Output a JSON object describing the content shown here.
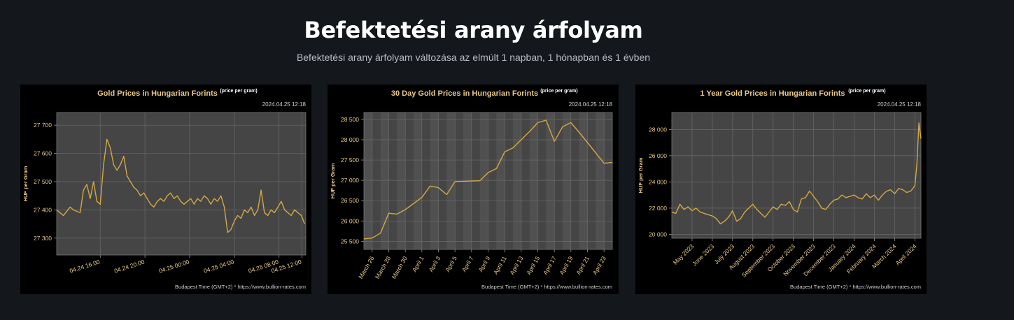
{
  "header": {
    "title": "Befektetési arany árfolyam",
    "subtitle": "Befektetési arany árfolyam változása az elmúlt 1 napban, 1 hónapban és 1 évben"
  },
  "colors": {
    "background": "#14171c",
    "plot_area": "#454545",
    "band": "#505050",
    "line": "#d4a843",
    "text_gold": "#e8c98a"
  },
  "chart_data": [
    {
      "type": "line",
      "title": "Gold Prices in Hungarian Forints",
      "title_sup": "(price per gram)",
      "timestamp": "2024.04.25 12:18",
      "footer": "Budapest Time (GMT+2) * https://www.bullion-rates.com",
      "ylabel": "HUF per Gram",
      "ylim": [
        27240,
        27745
      ],
      "yticks": [
        27300,
        27400,
        27500,
        27600,
        27700
      ],
      "ytick_labels": [
        "27 300",
        "27 400",
        "27 500",
        "27 600",
        "27 700"
      ],
      "xlim": [
        0,
        22.3
      ],
      "xticks": [
        3.9,
        7.9,
        11.9,
        15.9,
        19.9
      ],
      "xtick_labels": [
        "04.24 16:00",
        "04.24 20:00",
        "04.25 00:00",
        "04.25 04:00",
        "04.25 08:00",
        "04.25 12:00"
      ],
      "xtick_positions": [
        3,
        7,
        11,
        15,
        19,
        23
      ],
      "grid": true,
      "series": [
        {
          "x": [
            0,
            0.3,
            0.6,
            0.9,
            1.2,
            1.5,
            1.8,
            2.1,
            2.4,
            2.7,
            3.0,
            3.3,
            3.6,
            3.9,
            4.2,
            4.5,
            4.8,
            5.1,
            5.4,
            5.7,
            6.0,
            6.3,
            6.6,
            6.9,
            7.2,
            7.5,
            7.8,
            8.1,
            8.4,
            8.7,
            9.0,
            9.3,
            9.6,
            9.9,
            10.2,
            10.5,
            10.8,
            11.1,
            11.4,
            11.7,
            12.0,
            12.3,
            12.6,
            12.9,
            13.2,
            13.5,
            13.8,
            14.1,
            14.4,
            14.7,
            15.0,
            15.3,
            15.6,
            15.9,
            16.2,
            16.5,
            16.8,
            17.1,
            17.4,
            17.7,
            18.0,
            18.3,
            18.6,
            18.9,
            19.2,
            19.5,
            19.8,
            20.1,
            20.4,
            20.7,
            21.0,
            21.3,
            21.6,
            21.9,
            22.2
          ],
          "values": [
            27400,
            27390,
            27380,
            27395,
            27410,
            27400,
            27395,
            27390,
            27470,
            27490,
            27440,
            27500,
            27430,
            27420,
            27560,
            27650,
            27620,
            27560,
            27540,
            27560,
            27590,
            27520,
            27500,
            27480,
            27470,
            27450,
            27460,
            27440,
            27420,
            27410,
            27430,
            27440,
            27430,
            27450,
            27460,
            27440,
            27450,
            27430,
            27420,
            27430,
            27440,
            27420,
            27440,
            27430,
            27450,
            27440,
            27420,
            27440,
            27430,
            27450,
            27410,
            27320,
            27330,
            27360,
            27380,
            27370,
            27400,
            27390,
            27410,
            27380,
            27400,
            27470,
            27390,
            27380,
            27400,
            27390,
            27410,
            27430,
            27400,
            27390,
            27380,
            27400,
            27390,
            27380,
            27350
          ]
        }
      ]
    },
    {
      "type": "line",
      "title": "30 Day Gold Prices in Hungarian Forints",
      "title_sup": "(price per gram)",
      "timestamp": "2024.04.25 12:18",
      "footer": "Budapest Time (GMT+2) * https://www.bullion-rates.com",
      "ylabel": "HUF per Gram",
      "ylim": [
        25300,
        28670
      ],
      "yticks": [
        25500,
        26000,
        26500,
        27000,
        27500,
        28000,
        28500
      ],
      "ytick_labels": [
        "25 500",
        "26 000",
        "26 500",
        "27 000",
        "27 500",
        "28 000",
        "28 500"
      ],
      "xlim": [
        0,
        30
      ],
      "xtick_labels": [
        "March 26",
        "March 28",
        "March 30",
        "April 1",
        "April 3",
        "April 5",
        "April 7",
        "April 9",
        "April 11",
        "April 13",
        "April 15",
        "April 17",
        "April 19",
        "April 21",
        "April 23"
      ],
      "xtick_positions": [
        1,
        3,
        5,
        7,
        9,
        11,
        13,
        15,
        17,
        19,
        21,
        23,
        25,
        27,
        29
      ],
      "grid": true,
      "series": [
        {
          "x": [
            0,
            1,
            2,
            3,
            4,
            5,
            7,
            8,
            9,
            10,
            11,
            14,
            15,
            16,
            17,
            18,
            19,
            20,
            21,
            22,
            23,
            24,
            25,
            26,
            27,
            29,
            30
          ],
          "values": [
            25560,
            25580,
            25700,
            26190,
            26170,
            26280,
            26580,
            26860,
            26820,
            26650,
            26970,
            26990,
            27190,
            27290,
            27700,
            27800,
            28000,
            28200,
            28420,
            28480,
            27960,
            28320,
            28420,
            28180,
            27930,
            27420,
            27440
          ]
        }
      ]
    },
    {
      "type": "line",
      "title": "1 Year Gold Prices in Hungarian Forints",
      "title_sup": "(price per gram)",
      "timestamp": "2024.04.25 12:18",
      "footer": "Budapest Time (GMT+2) * https://www.bullion-rates.com",
      "ylabel": "HUF per Gram",
      "ylim": [
        19700,
        29300
      ],
      "yticks": [
        20000,
        22000,
        24000,
        26000,
        28000
      ],
      "ytick_labels": [
        "20 000",
        "22 000",
        "24 000",
        "26 000",
        "28 000"
      ],
      "xlim": [
        0,
        12.3
      ],
      "xtick_labels": [
        "May 2023",
        "June 2023",
        "July 2023",
        "August 2023",
        "September 2023",
        "October 2023",
        "November 2023",
        "December 2023",
        "January 2024",
        "February 2024",
        "March 2024",
        "April 2024"
      ],
      "xtick_positions": [
        1,
        2,
        3,
        4,
        5,
        6,
        7,
        8,
        9,
        10,
        11,
        12
      ],
      "grid": true,
      "series": [
        {
          "x": [
            0,
            0.2,
            0.4,
            0.6,
            0.8,
            1.0,
            1.2,
            1.4,
            1.6,
            1.8,
            2.0,
            2.2,
            2.4,
            2.6,
            2.8,
            3.0,
            3.2,
            3.4,
            3.6,
            3.8,
            4.0,
            4.2,
            4.4,
            4.6,
            4.8,
            5.0,
            5.2,
            5.4,
            5.6,
            5.8,
            6.0,
            6.2,
            6.4,
            6.6,
            6.8,
            7.0,
            7.2,
            7.4,
            7.6,
            7.8,
            8.0,
            8.2,
            8.4,
            8.6,
            8.8,
            9.0,
            9.2,
            9.4,
            9.6,
            9.8,
            10.0,
            10.2,
            10.4,
            10.6,
            10.8,
            11.0,
            11.2,
            11.4,
            11.6,
            11.8,
            12.0,
            12.1,
            12.2,
            12.3
          ],
          "values": [
            21700,
            21600,
            22300,
            21900,
            22100,
            21800,
            22000,
            21700,
            21600,
            21500,
            21400,
            21200,
            20800,
            21000,
            21300,
            21800,
            21000,
            21200,
            21700,
            22000,
            22300,
            21900,
            21600,
            21300,
            21700,
            22100,
            21900,
            22300,
            22200,
            22500,
            21900,
            21700,
            22700,
            22800,
            23300,
            22900,
            22500,
            22000,
            21900,
            22300,
            22600,
            22700,
            23000,
            22800,
            22900,
            23000,
            22800,
            22700,
            23100,
            22800,
            23000,
            22600,
            23000,
            23300,
            23400,
            23100,
            23500,
            23400,
            23200,
            23300,
            23700,
            25300,
            28500,
            27300
          ]
        }
      ]
    }
  ]
}
